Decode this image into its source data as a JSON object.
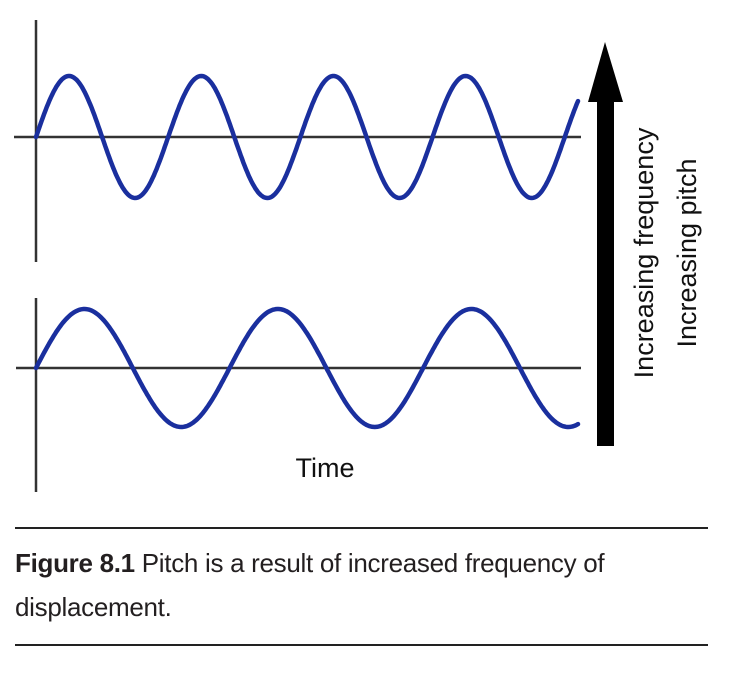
{
  "figure": {
    "x_axis_label": "Time",
    "arrow_labels": [
      "Increasing frequency",
      "Increasing pitch"
    ],
    "wave_color": "#1a2f9e",
    "axis_color": "#333333",
    "arrow_color": "#000000",
    "waves": [
      {
        "position": "top",
        "cycles_shown": 4.1,
        "relative_frequency": "higher"
      },
      {
        "position": "bottom",
        "cycles_shown": 2.8,
        "relative_frequency": "lower"
      }
    ]
  },
  "caption": {
    "label": "Figure 8.1",
    "text": " Pitch is a result of increased frequency of displacement."
  }
}
